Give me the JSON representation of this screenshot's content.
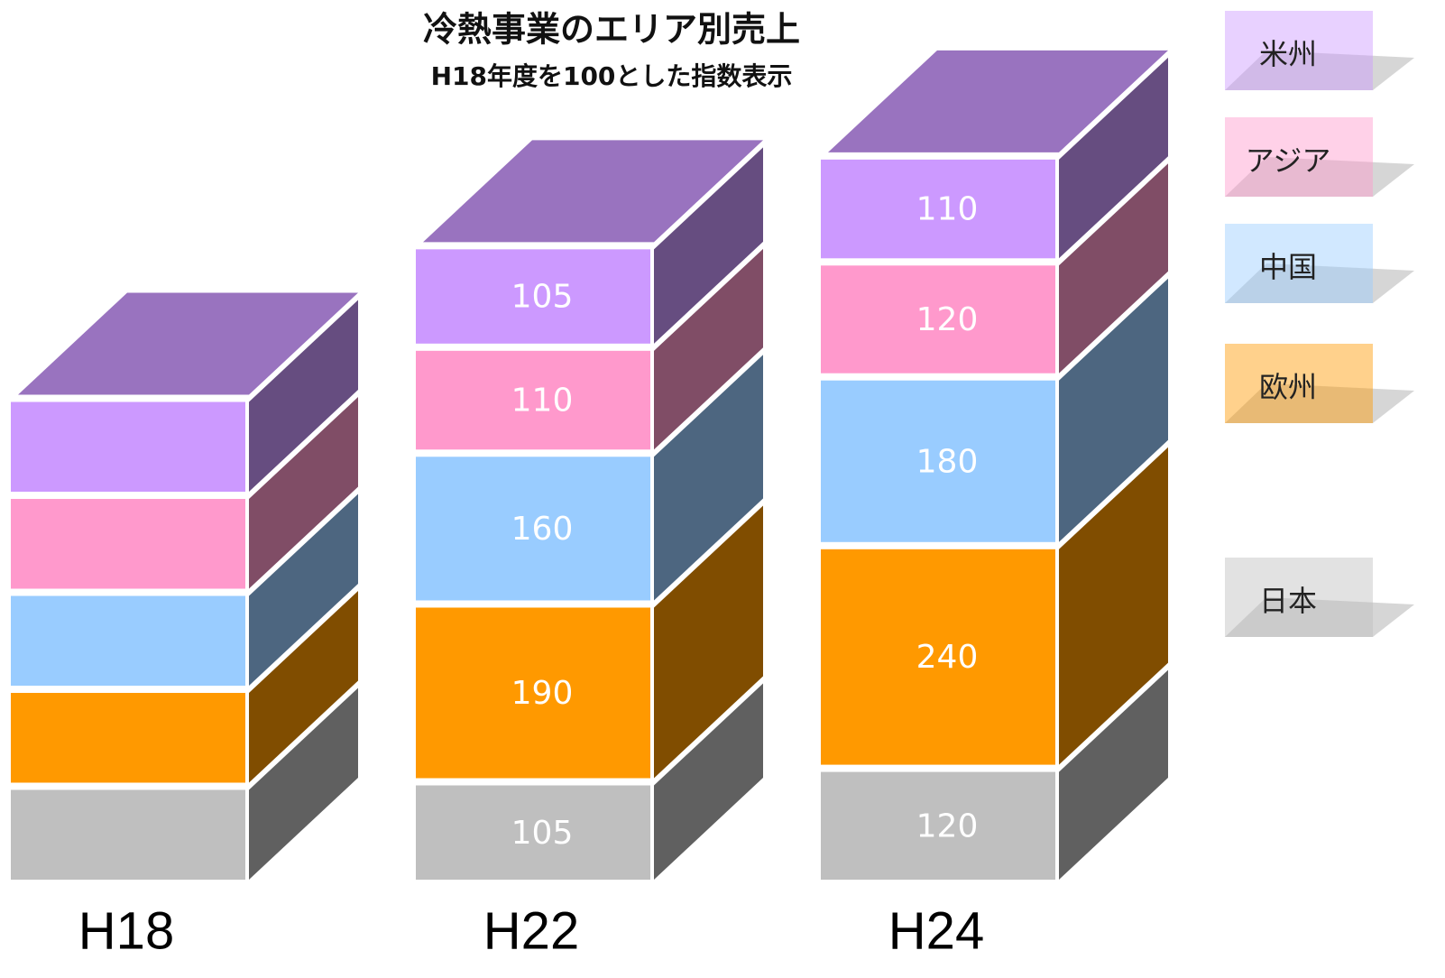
{
  "chart_data": {
    "type": "bar3d_stacked",
    "title": "冷熱事業のエリア別売上",
    "subtitle": "H18年度を100とした指数表示",
    "categories": [
      "H18",
      "H22",
      "H24"
    ],
    "series": [
      {
        "name": "日本",
        "color": "#bfbfbf",
        "values": [
          100,
          105,
          120
        ],
        "value_labels": [
          null,
          "105",
          "120"
        ]
      },
      {
        "name": "欧州",
        "color": "#ff9900",
        "values": [
          100,
          190,
          240
        ],
        "value_labels": [
          null,
          "190",
          "240"
        ]
      },
      {
        "name": "中国",
        "color": "#99ccff",
        "values": [
          100,
          160,
          180
        ],
        "value_labels": [
          null,
          "160",
          "180"
        ]
      },
      {
        "name": "アジア",
        "color": "#ff99cc",
        "values": [
          100,
          110,
          120
        ],
        "value_labels": [
          null,
          "110",
          "120"
        ]
      },
      {
        "name": "米州",
        "color": "#cc99ff",
        "values": [
          100,
          105,
          110
        ],
        "value_labels": [
          null,
          "105",
          "110"
        ]
      }
    ]
  }
}
